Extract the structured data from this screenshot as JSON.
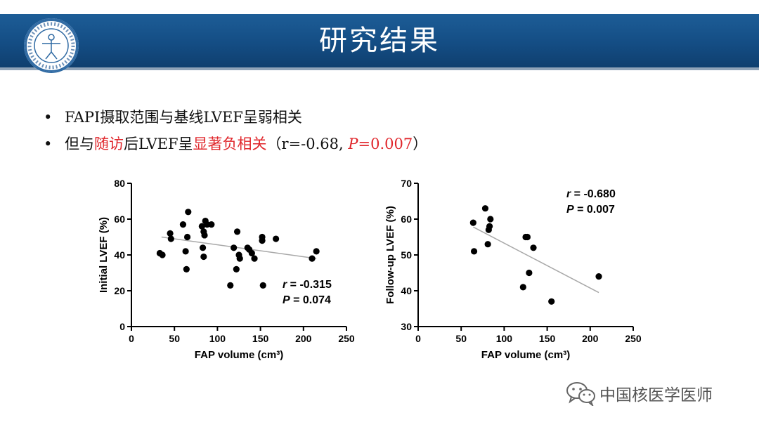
{
  "header": {
    "title": "研究结果",
    "logo_icon": "hospital-emblem-logo"
  },
  "bullets": {
    "line1": "FAPI摄取范围与基线LVEF呈弱相关",
    "line2_parts": {
      "a": "但与",
      "b": "随访",
      "c": "后LVEF呈",
      "d": "显著负相关",
      "e": "（r=-0.68, ",
      "f": "P",
      "g": "=0.007",
      "h": "）"
    }
  },
  "watermark": {
    "text": "中国核医学医师",
    "icon": "wechat-icon"
  },
  "colors": {
    "header_bg": "#154f88",
    "highlight": "#e0262b",
    "regression_line": "#a8a8a8"
  },
  "chart_data": [
    {
      "type": "scatter",
      "xlabel": "FAP volume (cm³)",
      "ylabel": "Initial LVEF (%)",
      "xlim": [
        0,
        250
      ],
      "ylim": [
        0,
        80
      ],
      "xticks": [
        0,
        50,
        100,
        150,
        200,
        250
      ],
      "yticks": [
        0,
        20,
        40,
        60,
        80
      ],
      "points": [
        {
          "x": 33,
          "y": 41
        },
        {
          "x": 36,
          "y": 40
        },
        {
          "x": 45,
          "y": 52
        },
        {
          "x": 46,
          "y": 49
        },
        {
          "x": 60,
          "y": 57
        },
        {
          "x": 63,
          "y": 42
        },
        {
          "x": 64,
          "y": 32
        },
        {
          "x": 65,
          "y": 50
        },
        {
          "x": 66,
          "y": 64
        },
        {
          "x": 82,
          "y": 56
        },
        {
          "x": 83,
          "y": 44
        },
        {
          "x": 84,
          "y": 39
        },
        {
          "x": 84,
          "y": 53
        },
        {
          "x": 85,
          "y": 51
        },
        {
          "x": 86,
          "y": 59
        },
        {
          "x": 88,
          "y": 57
        },
        {
          "x": 93,
          "y": 57
        },
        {
          "x": 115,
          "y": 23
        },
        {
          "x": 119,
          "y": 44
        },
        {
          "x": 122,
          "y": 32
        },
        {
          "x": 123,
          "y": 53
        },
        {
          "x": 125,
          "y": 40
        },
        {
          "x": 126,
          "y": 38
        },
        {
          "x": 135,
          "y": 44
        },
        {
          "x": 137,
          "y": 43
        },
        {
          "x": 140,
          "y": 41
        },
        {
          "x": 143,
          "y": 38
        },
        {
          "x": 152,
          "y": 50
        },
        {
          "x": 152,
          "y": 48
        },
        {
          "x": 153,
          "y": 23
        },
        {
          "x": 168,
          "y": 49
        },
        {
          "x": 210,
          "y": 38
        },
        {
          "x": 215,
          "y": 42
        }
      ],
      "regression": {
        "x": [
          35,
          215
        ],
        "y": [
          50,
          38
        ]
      },
      "annotation": {
        "r_label": "r",
        "r_value": " = -0.315",
        "p_label": "P",
        "p_value": " = 0.074"
      },
      "grid": false
    },
    {
      "type": "scatter",
      "xlabel": "FAP volume (cm³)",
      "ylabel": "Follow-up LVEF (%)",
      "xlim": [
        0,
        250
      ],
      "ylim": [
        30,
        70
      ],
      "xticks": [
        0,
        50,
        100,
        150,
        200,
        250
      ],
      "yticks": [
        30,
        40,
        50,
        60,
        70
      ],
      "points": [
        {
          "x": 64,
          "y": 59
        },
        {
          "x": 65,
          "y": 51
        },
        {
          "x": 78,
          "y": 63
        },
        {
          "x": 81,
          "y": 53
        },
        {
          "x": 82,
          "y": 57
        },
        {
          "x": 83,
          "y": 58
        },
        {
          "x": 84,
          "y": 60
        },
        {
          "x": 122,
          "y": 41
        },
        {
          "x": 125,
          "y": 55
        },
        {
          "x": 127,
          "y": 55
        },
        {
          "x": 129,
          "y": 45
        },
        {
          "x": 134,
          "y": 52
        },
        {
          "x": 155,
          "y": 37
        },
        {
          "x": 210,
          "y": 44
        }
      ],
      "regression": {
        "x": [
          64,
          210
        ],
        "y": [
          57.8,
          39.5
        ]
      },
      "annotation": {
        "r_label": "r",
        "r_value": " = -0.680",
        "p_label": "P",
        "p_value": " = 0.007"
      },
      "grid": false
    }
  ]
}
